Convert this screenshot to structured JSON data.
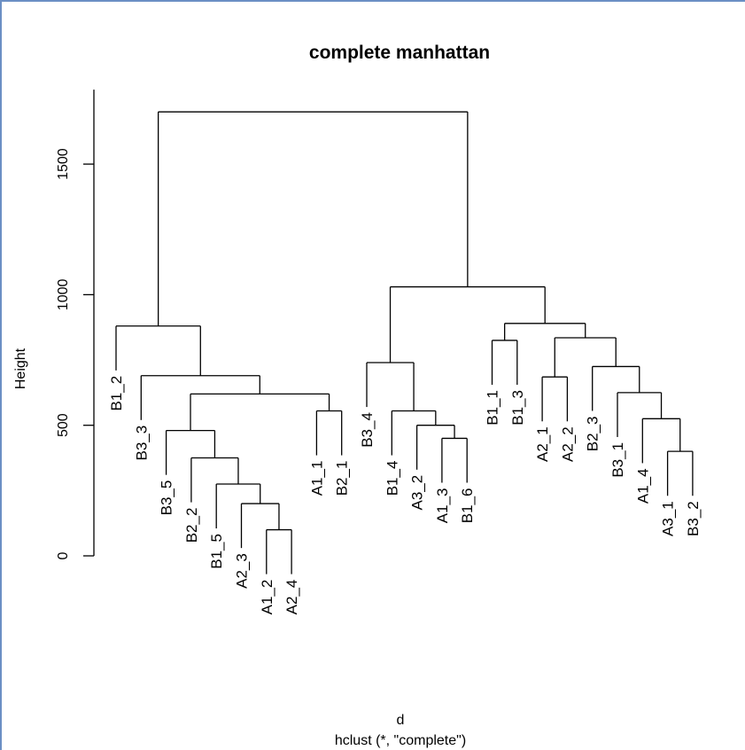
{
  "chart_data": {
    "type": "dendrogram",
    "title": "complete manhattan",
    "xlabel": "d",
    "sublabel": "hclust (*, \"complete\")",
    "ylabel": "Height",
    "ylim": [
      0,
      1700
    ],
    "yticks": [
      0,
      500,
      1000,
      1500
    ],
    "leaves": [
      "B1_2",
      "B3_3",
      "B3_5",
      "B2_2",
      "B1_5",
      "A2_3",
      "A1_2",
      "A2_4",
      "A1_1",
      "B2_1",
      "B3_4",
      "B1_4",
      "A3_2",
      "A1_3",
      "B1_6",
      "B1_1",
      "B1_3",
      "A2_1",
      "A2_2",
      "B2_3",
      "B3_1",
      "A1_4",
      "A3_1",
      "B3_2"
    ],
    "merges": [
      {
        "left": "A1_2",
        "right": "A2_4",
        "height": 100
      },
      {
        "left": "A2_3",
        "right": "m1",
        "height": 200
      },
      {
        "left": "B1_5",
        "right": "m2",
        "height": 275
      },
      {
        "left": "B2_2",
        "right": "m3",
        "height": 375
      },
      {
        "left": "B3_5",
        "right": "m4",
        "height": 480
      },
      {
        "left": "A1_1",
        "right": "B2_1",
        "height": 555
      },
      {
        "left": "m5",
        "right": "m6",
        "height": 620
      },
      {
        "left": "B3_3",
        "right": "m7",
        "height": 690
      },
      {
        "left": "B1_2",
        "right": "m8",
        "height": 880
      },
      {
        "left": "A1_3",
        "right": "B1_6",
        "height": 450
      },
      {
        "left": "A3_2",
        "right": "m10",
        "height": 500
      },
      {
        "left": "B1_4",
        "right": "m11",
        "height": 555
      },
      {
        "left": "B3_4",
        "right": "m12",
        "height": 740
      },
      {
        "left": "B1_1",
        "right": "B1_3",
        "height": 825
      },
      {
        "left": "A2_1",
        "right": "A2_2",
        "height": 685
      },
      {
        "left": "A3_1",
        "right": "B3_2",
        "height": 400
      },
      {
        "left": "A1_4",
        "right": "m16",
        "height": 525
      },
      {
        "left": "B3_1",
        "right": "m17",
        "height": 625
      },
      {
        "left": "B2_3",
        "right": "m18",
        "height": 725
      },
      {
        "left": "m15",
        "right": "m19",
        "height": 835
      },
      {
        "left": "m14",
        "right": "m20",
        "height": 890
      },
      {
        "left": "m13",
        "right": "m21",
        "height": 1030
      },
      {
        "left": "m9",
        "right": "m22",
        "height": 1700
      }
    ]
  }
}
